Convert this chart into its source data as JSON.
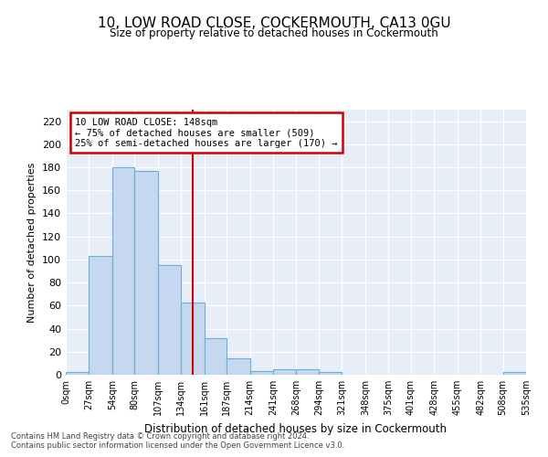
{
  "title": "10, LOW ROAD CLOSE, COCKERMOUTH, CA13 0GU",
  "subtitle": "Size of property relative to detached houses in Cockermouth",
  "xlabel": "Distribution of detached houses by size in Cockermouth",
  "ylabel": "Number of detached properties",
  "property_label": "10 LOW ROAD CLOSE: 148sqm",
  "annotation_line1": "← 75% of detached houses are smaller (509)",
  "annotation_line2": "25% of semi-detached houses are larger (170) →",
  "footer_line1": "Contains HM Land Registry data © Crown copyright and database right 2024.",
  "footer_line2": "Contains public sector information licensed under the Open Government Licence v3.0.",
  "bin_edges": [
    0,
    27,
    54,
    80,
    107,
    134,
    161,
    187,
    214,
    241,
    268,
    294,
    321,
    348,
    375,
    401,
    428,
    455,
    482,
    508,
    535
  ],
  "bin_labels": [
    "0sqm",
    "27sqm",
    "54sqm",
    "80sqm",
    "107sqm",
    "134sqm",
    "161sqm",
    "187sqm",
    "214sqm",
    "241sqm",
    "268sqm",
    "294sqm",
    "321sqm",
    "348sqm",
    "375sqm",
    "401sqm",
    "428sqm",
    "455sqm",
    "482sqm",
    "508sqm",
    "535sqm"
  ],
  "counts": [
    2,
    103,
    180,
    177,
    95,
    63,
    32,
    14,
    3,
    5,
    5,
    2,
    0,
    0,
    0,
    0,
    0,
    0,
    0,
    2
  ],
  "bar_color": "#c5d8f0",
  "bar_edge_color": "#6aaed6",
  "vline_x": 148,
  "vline_color": "#cc0000",
  "annotation_box_color": "#cc0000",
  "background_color": "#e8eef8",
  "ylim": [
    0,
    230
  ],
  "yticks": [
    0,
    20,
    40,
    60,
    80,
    100,
    120,
    140,
    160,
    180,
    200,
    220
  ],
  "grid_color": "#ffffff"
}
